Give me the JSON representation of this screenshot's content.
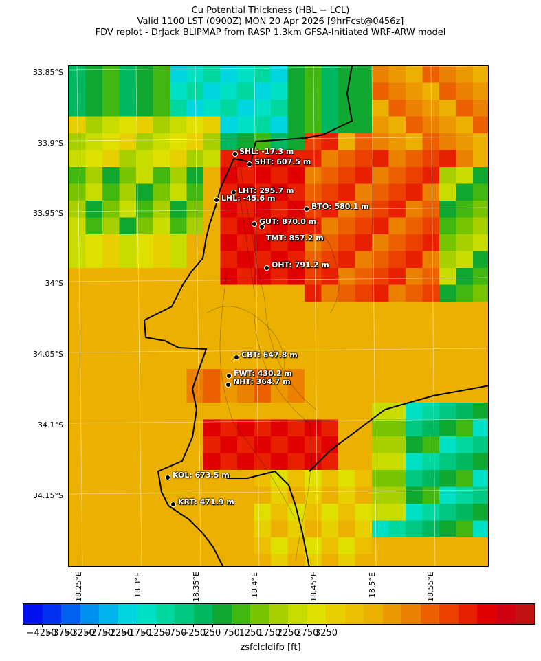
{
  "title": {
    "line1": "Cu Potential Thickness (HBL − LCL)",
    "line2": "Valid 1100 LST (0900Z) MON 20 Apr 2026 [9hrFcst@0456z]",
    "line3": "FDV replot - DrJack BLIPMAP from RASP 1.3km GFSA-Initiated WRF-ARW model"
  },
  "axes": {
    "lat_labels": [
      "33.85°S",
      "33.9°S",
      "33.95°S",
      "34°S",
      "34.05°S",
      "34.1°S",
      "34.15°S"
    ],
    "lon_labels": [
      "18.25°E",
      "18.3°E",
      "18.35°E",
      "18.4°E",
      "18.45°E",
      "18.5°E",
      "18.55°E"
    ]
  },
  "stations": [
    {
      "id": "SHL",
      "label": "SHL: -17.3 m"
    },
    {
      "id": "SHT",
      "label": "SHT: 607.5 m"
    },
    {
      "id": "LHT",
      "label": "LHT: 295.7 m"
    },
    {
      "id": "LHL",
      "label": "LHL: -45.6 m"
    },
    {
      "id": "BTO",
      "label": "BTO: 580.1 m"
    },
    {
      "id": "GUT",
      "label": "GUT: 870.0 m"
    },
    {
      "id": "TMT",
      "label": "TMT: 857.2 m"
    },
    {
      "id": "OHT",
      "label": "OHT: 791.2 m"
    },
    {
      "id": "CBT",
      "label": "CBT: 647.8 m"
    },
    {
      "id": "FWT",
      "label": "FWT: 430.2 m"
    },
    {
      "id": "NHT",
      "label": "NHT: 364.7 m"
    },
    {
      "id": "KOL",
      "label": "KOL: 673.5 m"
    },
    {
      "id": "KRT",
      "label": "KRT: 471.9 m"
    }
  ],
  "colorbar": {
    "label": "zsfclcldifb [ft]",
    "tick_labels": [
      "−4250",
      "−3750",
      "−3250",
      "−2750",
      "−2250",
      "−1750",
      "−1250",
      "−750",
      "−250",
      "250",
      "750",
      "1250",
      "1750",
      "2250",
      "2750",
      "3250"
    ],
    "colors": [
      "#0010ee",
      "#0030f0",
      "#0060f0",
      "#0090f0",
      "#00b4ec",
      "#00d6e0",
      "#00e0c4",
      "#00d8a0",
      "#00c880",
      "#00b860",
      "#10a830",
      "#40b810",
      "#78c400",
      "#a8d000",
      "#c8dc00",
      "#e0e000",
      "#e8d000",
      "#ecc000",
      "#ecb000",
      "#ec9800",
      "#ec8000",
      "#ec6000",
      "#ec4000",
      "#e82000",
      "#e00000",
      "#d00010",
      "#c01010"
    ]
  }
}
